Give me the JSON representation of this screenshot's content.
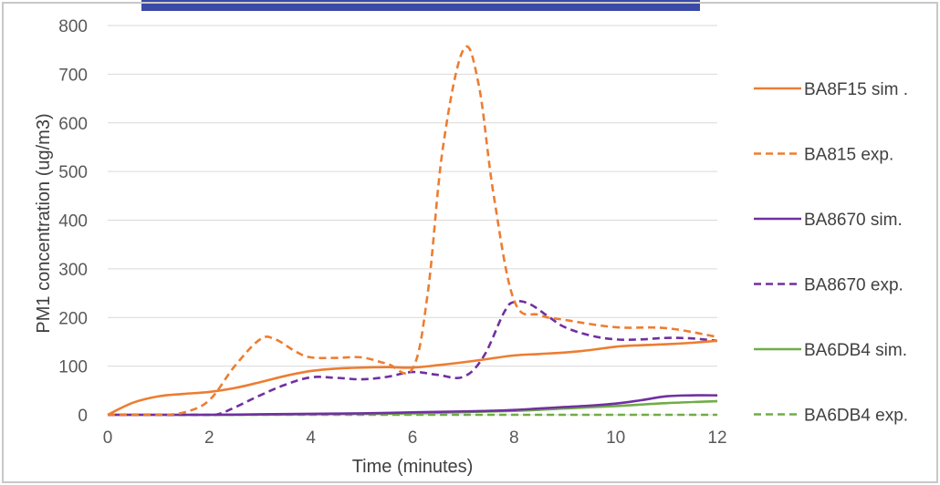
{
  "chart_data": {
    "type": "line",
    "title": "",
    "xlabel": "Time (minutes)",
    "ylabel": "PM1 concentration (ug/m3)",
    "xlim": [
      0,
      12
    ],
    "ylim": [
      0,
      800
    ],
    "xticks": [
      0,
      2,
      4,
      6,
      8,
      10,
      12
    ],
    "yticks": [
      0,
      100,
      200,
      300,
      400,
      500,
      600,
      700,
      800
    ],
    "grid": "horizontal",
    "legend_position": "right",
    "series": [
      {
        "name": "BA8F15 sim .",
        "color": "#ED7D31",
        "dash": "solid",
        "x": [
          0,
          0.5,
          1,
          1.5,
          2,
          2.5,
          3,
          3.5,
          4,
          4.5,
          5,
          5.5,
          6,
          6.5,
          7,
          7.5,
          8,
          8.5,
          9,
          9.5,
          10,
          10.5,
          11,
          11.5,
          12
        ],
        "y": [
          0,
          25,
          38,
          43,
          47,
          55,
          67,
          80,
          90,
          95,
          97,
          98,
          97,
          102,
          108,
          115,
          122,
          125,
          128,
          133,
          140,
          143,
          145,
          148,
          152
        ]
      },
      {
        "name": "BA815 exp.",
        "color": "#ED7D31",
        "dash": "dashed",
        "x": [
          0,
          1,
          1.5,
          2,
          2.5,
          3,
          3.3,
          3.7,
          4,
          4.5,
          5,
          5.5,
          6,
          6.3,
          6.6,
          7,
          7.3,
          7.6,
          8,
          8.5,
          9,
          10,
          11,
          12
        ],
        "y": [
          0,
          0,
          5,
          30,
          100,
          155,
          155,
          130,
          118,
          117,
          118,
          105,
          95,
          250,
          550,
          750,
          680,
          450,
          235,
          205,
          195,
          180,
          178,
          160
        ]
      },
      {
        "name": "BA8670 sim.",
        "color": "#7030A0",
        "dash": "solid",
        "x": [
          0,
          1,
          2,
          3,
          4,
          5,
          6,
          7,
          7.5,
          8,
          8.5,
          9,
          9.5,
          10,
          10.5,
          11,
          11.5,
          12
        ],
        "y": [
          0,
          0,
          0,
          1,
          2,
          3,
          5,
          7,
          8,
          10,
          13,
          16,
          19,
          23,
          30,
          38,
          40,
          40
        ]
      },
      {
        "name": "BA8670 exp.",
        "color": "#7030A0",
        "dash": "dashed",
        "x": [
          0,
          1,
          2,
          2.2,
          2.5,
          3,
          3.5,
          4,
          4.5,
          5,
          5.5,
          6,
          6.5,
          7,
          7.4,
          7.8,
          8,
          8.3,
          8.7,
          9,
          9.5,
          10,
          10.5,
          11,
          11.5,
          12
        ],
        "y": [
          0,
          0,
          0,
          2,
          15,
          40,
          62,
          77,
          76,
          73,
          78,
          88,
          82,
          78,
          120,
          210,
          232,
          228,
          200,
          180,
          163,
          155,
          155,
          158,
          157,
          152
        ]
      },
      {
        "name": "BA6DB4 sim.",
        "color": "#70AD47",
        "dash": "solid",
        "x": [
          0,
          2,
          4,
          6,
          8,
          9,
          10,
          11,
          12
        ],
        "y": [
          0,
          0,
          1,
          3,
          8,
          13,
          18,
          24,
          28
        ]
      },
      {
        "name": "BA6DB4 exp.",
        "color": "#70AD47",
        "dash": "dashed",
        "x": [
          0,
          2,
          4,
          6,
          8,
          10,
          12
        ],
        "y": [
          0,
          0,
          0,
          0,
          0,
          0,
          0
        ]
      }
    ]
  }
}
